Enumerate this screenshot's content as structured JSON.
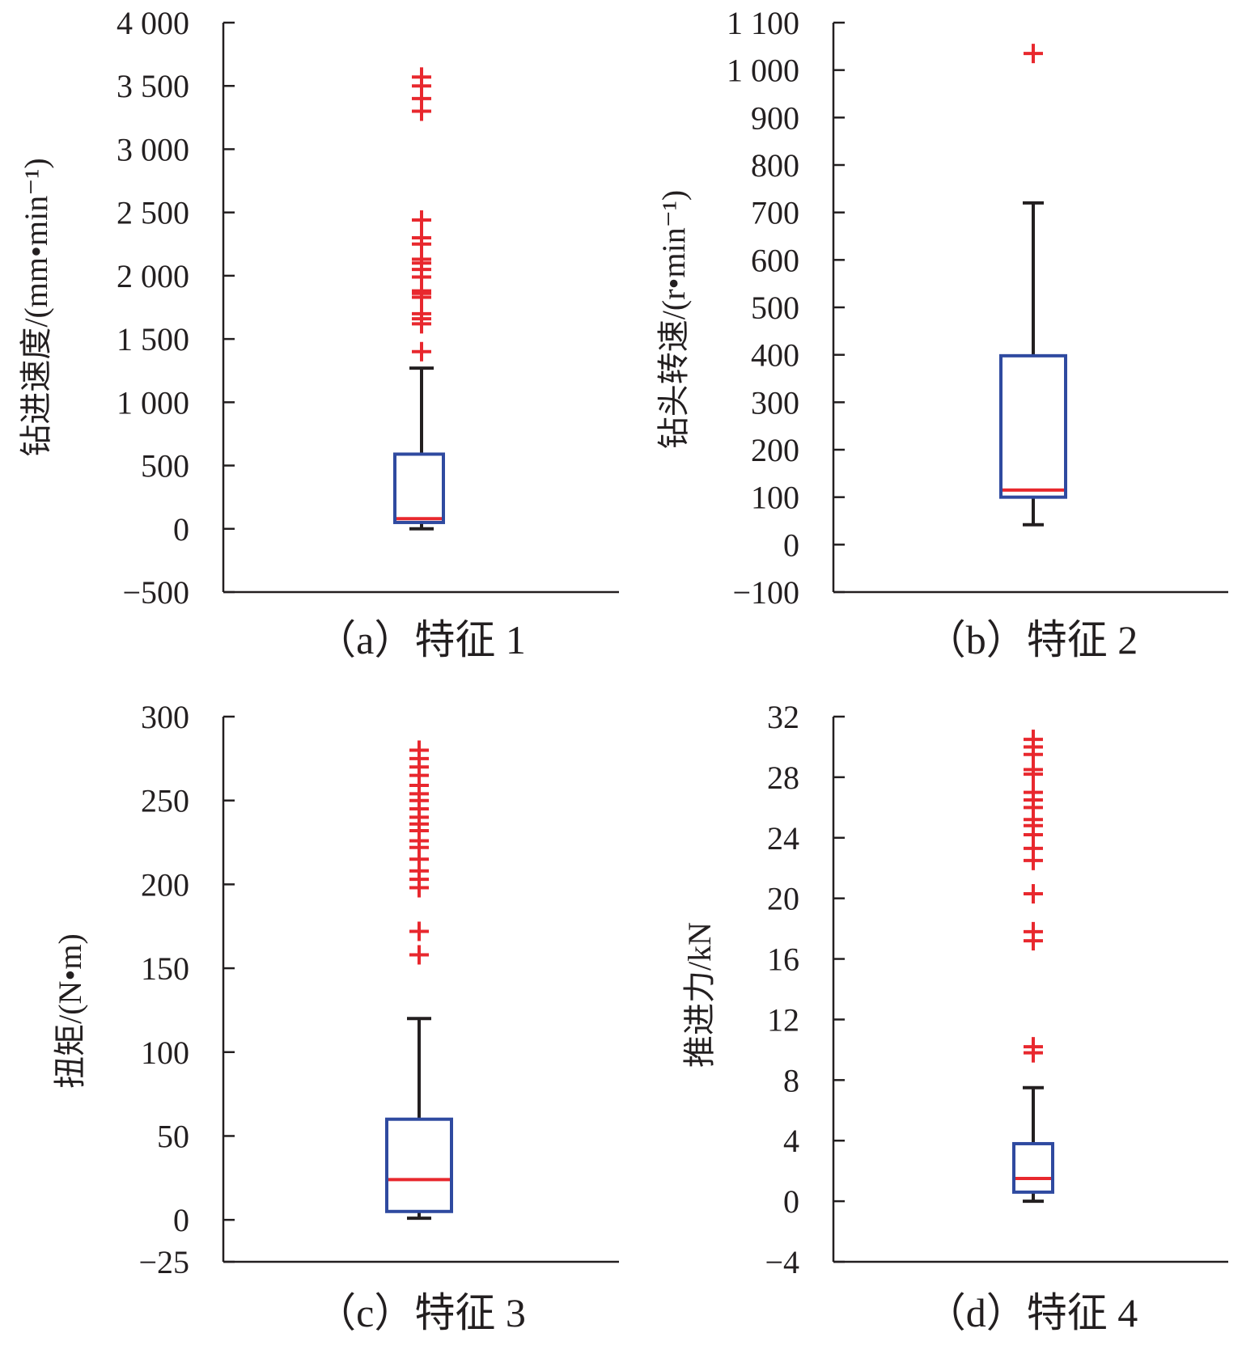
{
  "colors": {
    "axis": "#231f20",
    "box": "#2f4aa0",
    "median": "#e8282e",
    "whisker": "#231f20",
    "outlier": "#e8282e"
  },
  "chart_data": [
    {
      "type": "boxplot",
      "caption": "（a）特征 1",
      "ylabel": "钻进速度/(mm•min⁻¹)",
      "ylim": [
        -500,
        4000
      ],
      "yticks": [
        -500,
        0,
        500,
        1000,
        1500,
        2000,
        2500,
        3000,
        3500,
        4000
      ],
      "ytick_labels": [
        "−500",
        "0",
        "500",
        "1 000",
        "1 500",
        "2 000",
        "2 500",
        "3 000",
        "3 500",
        "4 000"
      ],
      "whisker_low": 0,
      "q1": 50,
      "median": 80,
      "q3": 590,
      "whisker_high": 1270,
      "outliers": [
        1400,
        1620,
        1660,
        1700,
        1830,
        1860,
        1880,
        1990,
        2050,
        2100,
        2130,
        2250,
        2300,
        2440,
        3300,
        3400,
        3500,
        3570
      ]
    },
    {
      "type": "boxplot",
      "caption": "（b）特征 2",
      "ylabel": "钻头转速/(r•min⁻¹)",
      "ylim": [
        -100,
        1100
      ],
      "yticks": [
        -100,
        0,
        100,
        200,
        300,
        400,
        500,
        600,
        700,
        800,
        900,
        1000,
        1100
      ],
      "ytick_labels": [
        "−100",
        "0",
        "100",
        "200",
        "300",
        "400",
        "500",
        "600",
        "700",
        "800",
        "900",
        "1 000",
        "1 100"
      ],
      "whisker_low": 42,
      "q1": 100,
      "median": 115,
      "q3": 398,
      "whisker_high": 720,
      "outliers": [
        1035
      ]
    },
    {
      "type": "boxplot",
      "caption": "（c）特征 3",
      "ylabel": "扭矩/(N•m)",
      "ylim": [
        -25,
        300
      ],
      "yticks": [
        -25,
        0,
        50,
        100,
        150,
        200,
        250,
        300
      ],
      "ytick_labels": [
        "−25",
        "0",
        "50",
        "100",
        "150",
        "200",
        "250",
        "300"
      ],
      "whisker_low": 1,
      "q1": 5,
      "median": 24,
      "q3": 60,
      "whisker_high": 120,
      "outliers": [
        158,
        172,
        198,
        203,
        208,
        215,
        222,
        226,
        232,
        236,
        240,
        245,
        250,
        254,
        259,
        265,
        270,
        275,
        280
      ]
    },
    {
      "type": "boxplot",
      "caption": "（d）特征 4",
      "ylabel": "推进力/kN",
      "ylim": [
        -4,
        32
      ],
      "yticks": [
        -4,
        0,
        4,
        8,
        12,
        16,
        20,
        24,
        28,
        32
      ],
      "ytick_labels": [
        "−4",
        "0",
        "4",
        "8",
        "12",
        "16",
        "20",
        "24",
        "28",
        "32"
      ],
      "whisker_low": 0,
      "q1": 0.6,
      "median": 1.5,
      "q3": 3.8,
      "whisker_high": 7.5,
      "outliers": [
        9.8,
        10.2,
        17.2,
        17.8,
        20.3,
        22.5,
        23.3,
        24.2,
        24.8,
        25.2,
        26.0,
        26.5,
        27.0,
        28.2,
        28.5,
        29.5,
        30.0,
        30.5
      ]
    }
  ]
}
